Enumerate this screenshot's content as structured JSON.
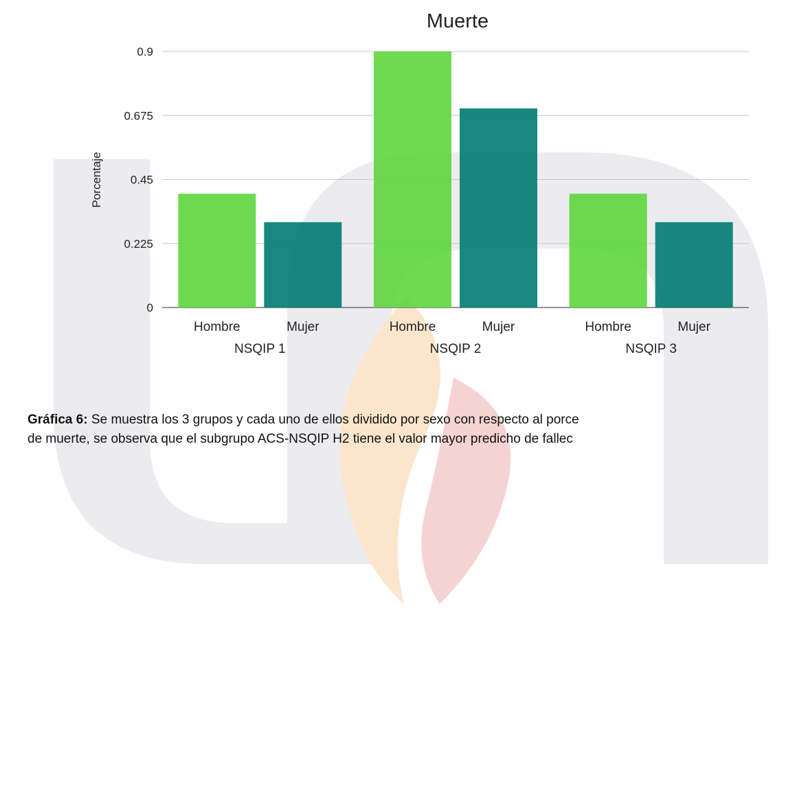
{
  "chart_data": {
    "type": "bar",
    "title": "Muerte",
    "ylabel": "Porcentaje",
    "xlabel": "",
    "ylim": [
      0,
      0.9
    ],
    "yticks": [
      "0",
      "0.225",
      "0.45",
      "0.675",
      "0.9"
    ],
    "grid": true,
    "groups": [
      {
        "label": "NSQIP 1",
        "bars": [
          {
            "label": "Hombre",
            "value": 0.4
          },
          {
            "label": "Mujer",
            "value": 0.3
          }
        ]
      },
      {
        "label": "NSQIP 2",
        "bars": [
          {
            "label": "Hombre",
            "value": 0.9
          },
          {
            "label": "Mujer",
            "value": 0.7
          }
        ]
      },
      {
        "label": "NSQIP 3",
        "bars": [
          {
            "label": "Hombre",
            "value": 0.4
          },
          {
            "label": "Mujer",
            "value": 0.3
          }
        ]
      }
    ],
    "colors": {
      "Hombre": "#5dd63d",
      "Mujer": "#007b72"
    }
  },
  "caption": {
    "label": "Gráfica 6:",
    "line1": " Se muestra los 3 grupos y cada uno de ellos dividido por sexo con respecto al porce",
    "line2": "de muerte, se observa que el subgrupo ACS-NSQIP H2 tiene el valor mayor predicho de fallec"
  },
  "watermark": {
    "colors": {
      "gray": "#e9e9ec",
      "orange": "#fbe7cf",
      "red": "#f6d4d4"
    }
  }
}
